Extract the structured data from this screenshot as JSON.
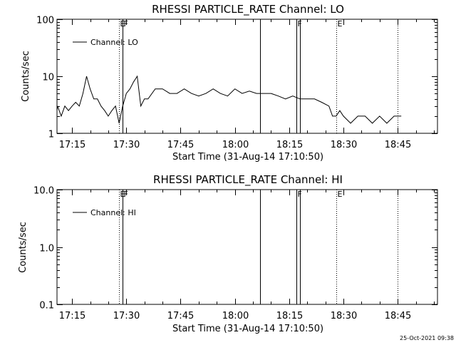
{
  "chart_data": [
    {
      "type": "line",
      "title": "RHESSI PARTICLE_RATE Channel: LO",
      "xlabel": "Start Time (31-Aug-14 17:10:50)",
      "ylabel": "Counts/sec",
      "yscale": "log",
      "ylim": [
        1,
        100
      ],
      "xlim_minutes": [
        17.17,
        18.93
      ],
      "x_ticks": [
        "17:15",
        "17:30",
        "17:45",
        "18:00",
        "18:15",
        "18:30",
        "18:45"
      ],
      "y_ticks": [
        "1",
        "10",
        "100"
      ],
      "legend_label": "Channel: LO",
      "legend_position": "top-left",
      "grid": false,
      "events": [
        {
          "time": "17:28",
          "style": "dotted",
          "label": "E"
        },
        {
          "time": "17:29",
          "style": "solid",
          "label": "F"
        },
        {
          "time": "18:07",
          "style": "solid",
          "label": ""
        },
        {
          "time": "18:17",
          "style": "solid",
          "label": "F"
        },
        {
          "time": "18:18",
          "style": "solid",
          "label": ""
        },
        {
          "time": "18:28",
          "style": "dotted",
          "label": "E"
        },
        {
          "time": "18:45",
          "style": "dotted",
          "label": ""
        }
      ],
      "series": [
        {
          "x": [
            "17:10",
            "17:11",
            "17:12",
            "17:13",
            "17:14",
            "17:15",
            "17:16",
            "17:17",
            "17:18",
            "17:19",
            "17:20",
            "17:21",
            "17:22",
            "17:23",
            "17:24",
            "17:25",
            "17:26",
            "17:27",
            "17:28",
            "17:29",
            "17:30",
            "17:31",
            "17:32",
            "17:33",
            "17:34",
            "17:35",
            "17:36",
            "17:38",
            "17:40",
            "17:42",
            "17:44",
            "17:46",
            "17:48",
            "17:50",
            "17:52",
            "17:54",
            "17:56",
            "17:58",
            "18:00",
            "18:02",
            "18:04",
            "18:06",
            "18:08",
            "18:10",
            "18:12",
            "18:14",
            "18:16",
            "18:18",
            "18:20",
            "18:22",
            "18:24",
            "18:26",
            "18:27",
            "18:28",
            "18:29",
            "18:30",
            "18:32",
            "18:34",
            "18:36",
            "18:38",
            "18:40",
            "18:42",
            "18:44",
            "18:46"
          ],
          "values": [
            2.5,
            3,
            2,
            3,
            2.5,
            3,
            3.5,
            3,
            5,
            10,
            6,
            4,
            4,
            3,
            2.5,
            2,
            2.5,
            3,
            1.5,
            3,
            5,
            6,
            8,
            10,
            3,
            4,
            4,
            6,
            6,
            5,
            5,
            6,
            5,
            4.5,
            5,
            6,
            5,
            4.5,
            6,
            5,
            5.5,
            5,
            5,
            5,
            4.5,
            4,
            4.5,
            4,
            4,
            4,
            3.5,
            3,
            2,
            2,
            2.5,
            2,
            1.5,
            2,
            2,
            1.5,
            2,
            1.5,
            2,
            2
          ]
        }
      ]
    },
    {
      "type": "line",
      "title": "RHESSI PARTICLE_RATE Channel: HI",
      "xlabel": "Start Time (31-Aug-14 17:10:50)",
      "ylabel": "Counts/sec",
      "yscale": "log",
      "ylim": [
        0.1,
        10
      ],
      "x_ticks": [
        "17:15",
        "17:30",
        "17:45",
        "18:00",
        "18:15",
        "18:30",
        "18:45"
      ],
      "y_ticks": [
        "0.1",
        "1.0",
        "10.0"
      ],
      "legend_label": "Channel: HI",
      "legend_position": "top-left",
      "grid": false,
      "events": [
        {
          "time": "17:28",
          "style": "dotted",
          "label": "E"
        },
        {
          "time": "17:29",
          "style": "solid",
          "label": "F"
        },
        {
          "time": "18:07",
          "style": "solid",
          "label": ""
        },
        {
          "time": "18:17",
          "style": "solid",
          "label": "F"
        },
        {
          "time": "18:18",
          "style": "solid",
          "label": ""
        },
        {
          "time": "18:28",
          "style": "dotted",
          "label": "E"
        },
        {
          "time": "18:45",
          "style": "dotted",
          "label": ""
        }
      ],
      "series": []
    }
  ],
  "footer": {
    "timestamp": "25-Oct-2021 09:38"
  }
}
